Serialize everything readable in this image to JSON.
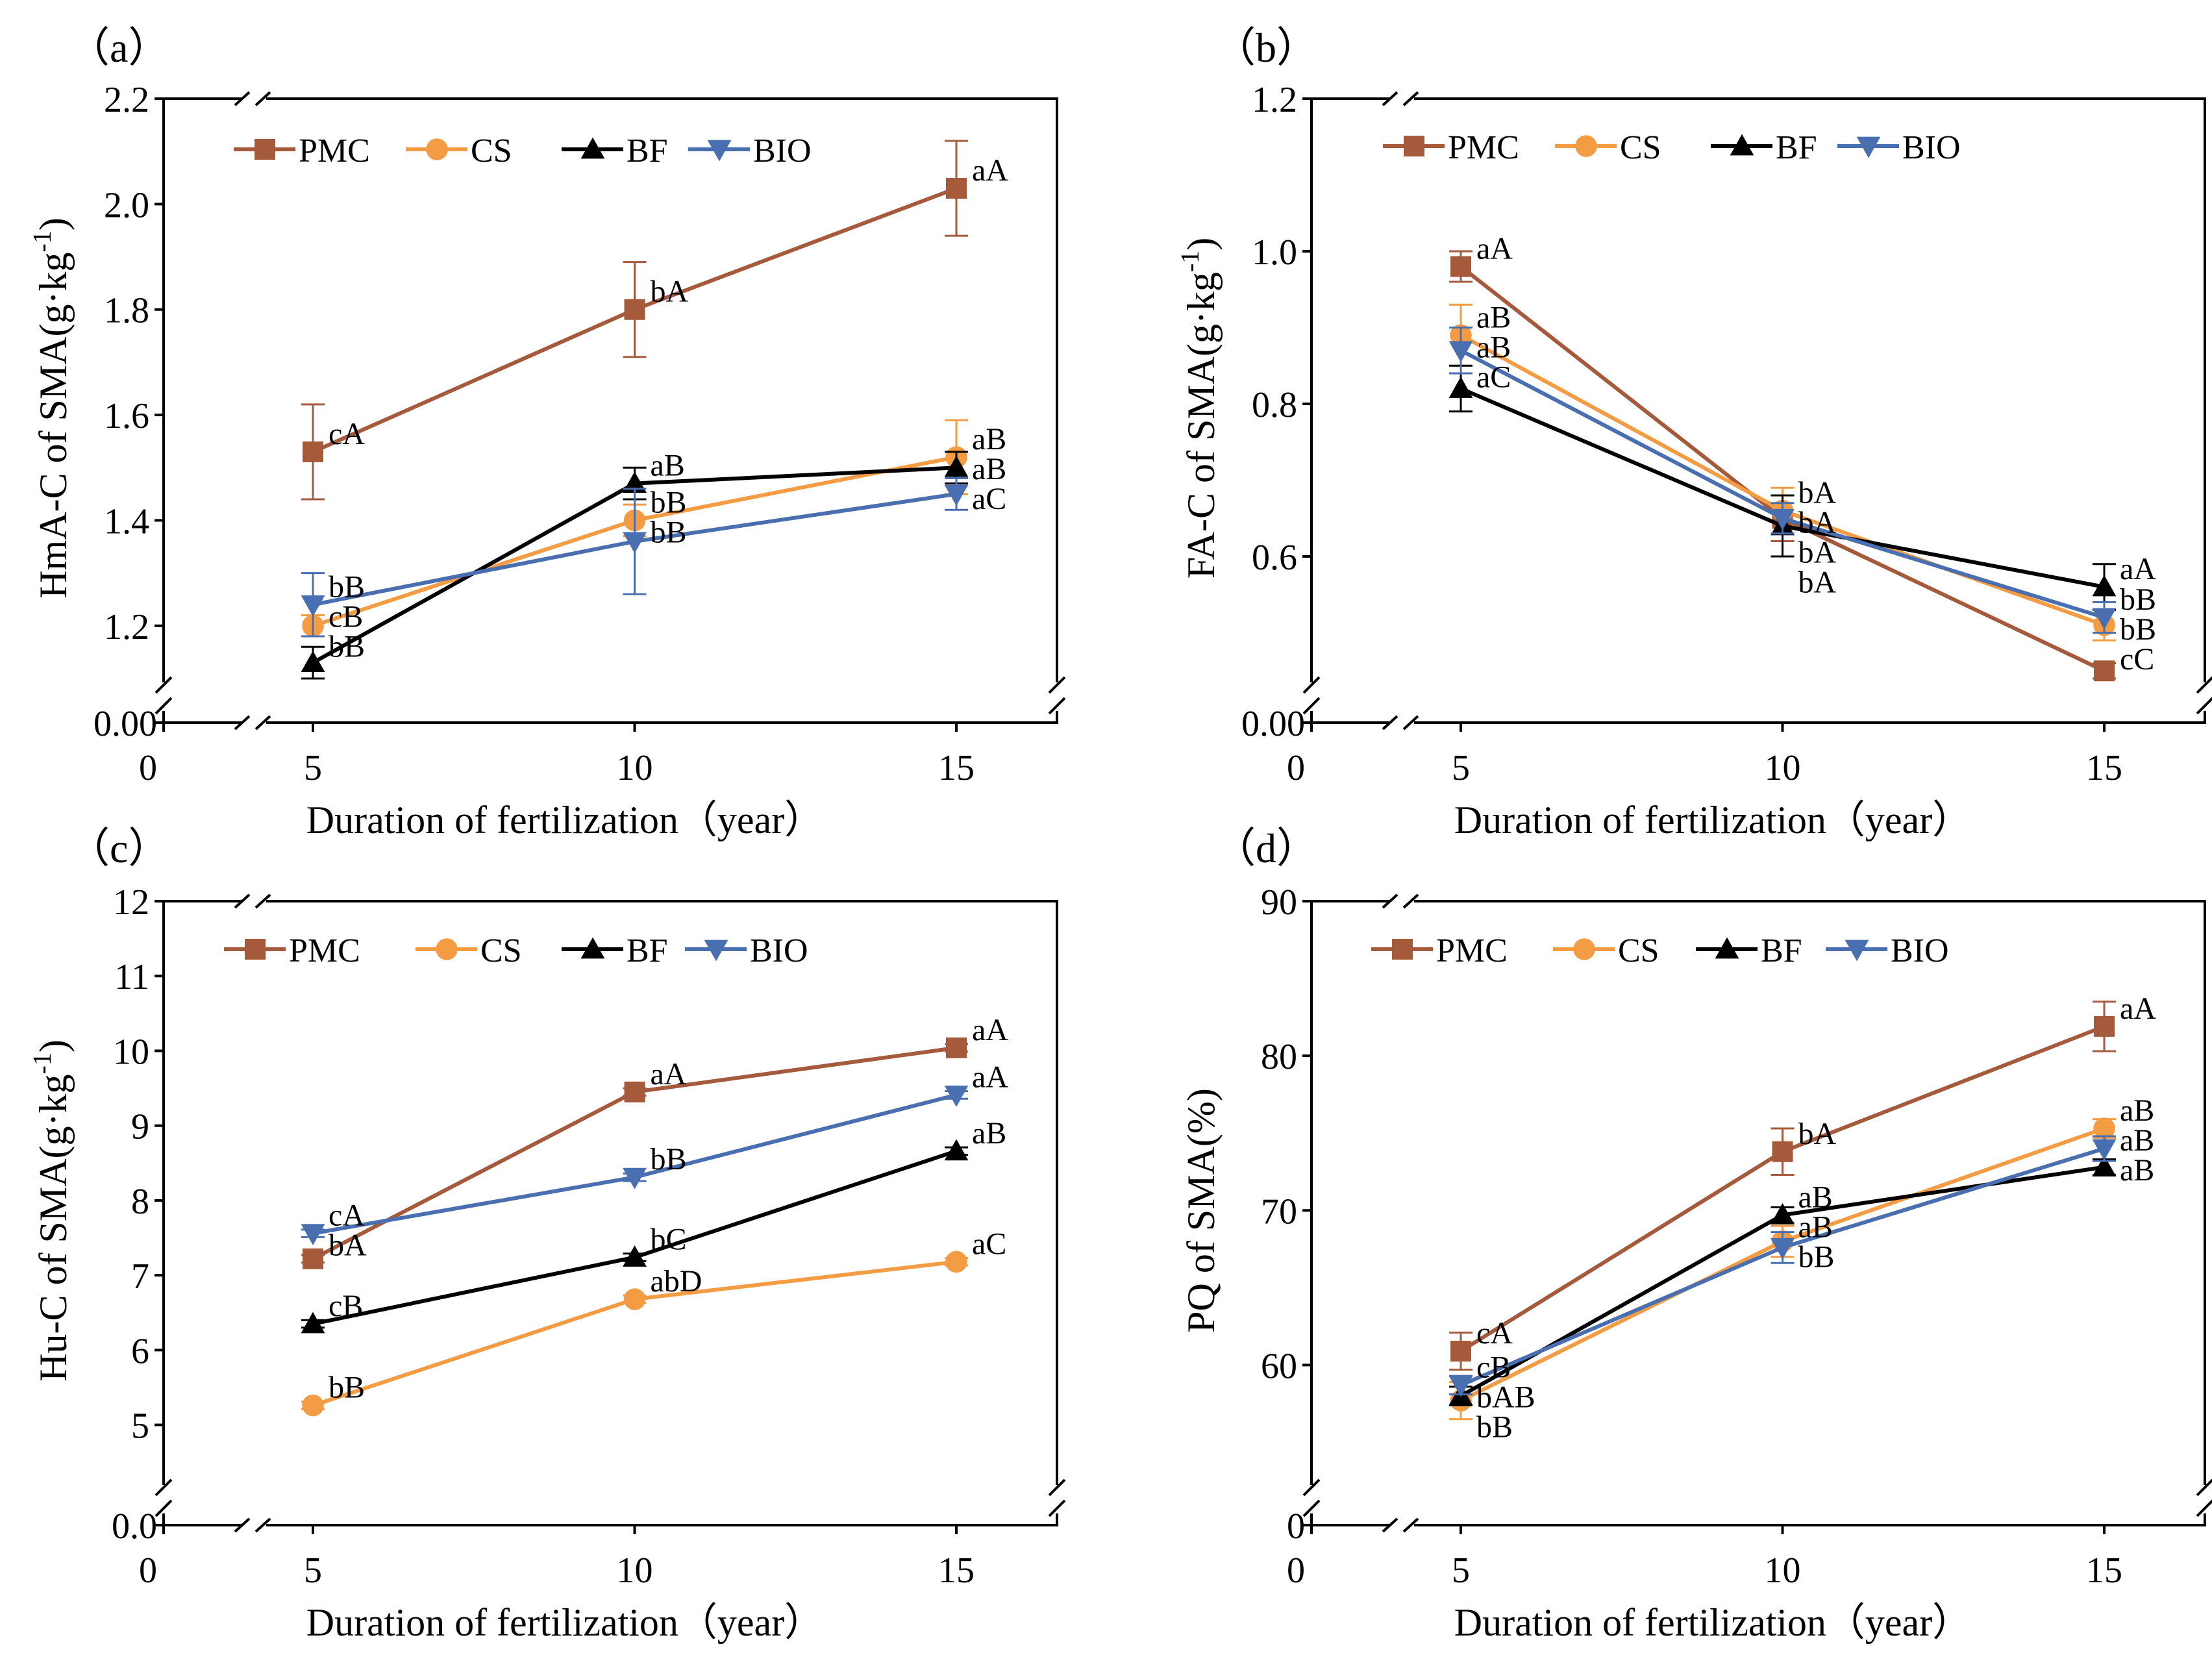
{
  "figure": {
    "series_colors": {
      "PMC": "#A55A3C",
      "CS": "#F39C43",
      "BF": "#000000",
      "BIO": "#4A6FB0"
    }
  },
  "chart_data": [
    {
      "type": "line",
      "panel_label": "（a）",
      "ylabel": "HmA-C of SMA(g·kg",
      "ylabel_sup": "-1",
      "ylabel_close": ")",
      "xlabel": "Duration of  fertilization（year）",
      "x_ticks": [
        "0",
        "5",
        "10",
        "15"
      ],
      "y_ticks": [
        {
          "v": 1.2,
          "t": "1.2"
        },
        {
          "v": 1.4,
          "t": "1.4"
        },
        {
          "v": 1.6,
          "t": "1.6"
        },
        {
          "v": 1.8,
          "t": "1.8"
        },
        {
          "v": 2.0,
          "t": "2.0"
        },
        {
          "v": 2.2,
          "t": "2.2"
        }
      ],
      "y_zero_label": "0.00",
      "ylim": [
        1.1,
        2.2
      ],
      "legend": [
        "PMC",
        "CS",
        "BF",
        "BIO"
      ],
      "x": [
        5,
        10,
        15
      ],
      "series": [
        {
          "name": "PMC",
          "values": [
            1.53,
            1.8,
            2.03
          ],
          "err": [
            0.09,
            0.09,
            0.09
          ],
          "labels": [
            "cA",
            "bA",
            "aA"
          ]
        },
        {
          "name": "CS",
          "values": [
            1.2,
            1.4,
            1.52
          ],
          "err": [
            0.02,
            0.03,
            0.07
          ],
          "labels": [
            "cB",
            "bB",
            "aB"
          ]
        },
        {
          "name": "BF",
          "values": [
            1.13,
            1.47,
            1.5
          ],
          "err": [
            0.03,
            0.03,
            0.03
          ],
          "labels": [
            "bB",
            "aB",
            "aB"
          ]
        },
        {
          "name": "BIO",
          "values": [
            1.24,
            1.36,
            1.45
          ],
          "err": [
            0.06,
            0.1,
            0.03
          ],
          "labels": [
            "bB",
            "bB",
            "aC"
          ]
        }
      ]
    },
    {
      "type": "line",
      "panel_label": "（b）",
      "ylabel": "FA-C of SMA(g·kg",
      "ylabel_sup": "-1",
      "ylabel_close": ")",
      "xlabel": "Duration of  fertilization（year）",
      "x_ticks": [
        "0",
        "5",
        "10",
        "15"
      ],
      "y_ticks": [
        {
          "v": 0.6,
          "t": "0.6"
        },
        {
          "v": 0.8,
          "t": "0.8"
        },
        {
          "v": 1.0,
          "t": "1.0"
        },
        {
          "v": 1.2,
          "t": "1.2"
        }
      ],
      "y_zero_label": "0.00",
      "ylim": [
        0.44,
        1.2
      ],
      "legend": [
        "PMC",
        "CS",
        "BF",
        "BIO"
      ],
      "x": [
        5,
        10,
        15
      ],
      "series": [
        {
          "name": "PMC",
          "values": [
            0.98,
            0.65,
            0.45
          ],
          "err": [
            0.02,
            0.03,
            0.01
          ],
          "labels": [
            "aA",
            "bA",
            "cC"
          ]
        },
        {
          "name": "CS",
          "values": [
            0.89,
            0.66,
            0.51
          ],
          "err": [
            0.04,
            0.03,
            0.02
          ],
          "labels": [
            "aB",
            "bA",
            "bB"
          ]
        },
        {
          "name": "BF",
          "values": [
            0.82,
            0.64,
            0.56
          ],
          "err": [
            0.03,
            0.04,
            0.03
          ],
          "labels": [
            "aC",
            "bA",
            "aA"
          ]
        },
        {
          "name": "BIO",
          "values": [
            0.87,
            0.65,
            0.52
          ],
          "err": [
            0.03,
            0.02,
            0.02
          ],
          "labels": [
            "aB",
            "bA",
            "bB"
          ]
        }
      ]
    },
    {
      "type": "line",
      "panel_label": "（c）",
      "ylabel": "Hu-C of SMA(g·kg",
      "ylabel_sup": "-1",
      "ylabel_close": ")",
      "xlabel": "Duration of  fertilization（year）",
      "x_ticks": [
        "0",
        "5",
        "10",
        "15"
      ],
      "y_ticks": [
        {
          "v": 5,
          "t": "5"
        },
        {
          "v": 6,
          "t": "6"
        },
        {
          "v": 7,
          "t": "7"
        },
        {
          "v": 8,
          "t": "8"
        },
        {
          "v": 9,
          "t": "9"
        },
        {
          "v": 10,
          "t": "10"
        },
        {
          "v": 11,
          "t": "11"
        },
        {
          "v": 12,
          "t": "12"
        }
      ],
      "y_zero_label": "0.0",
      "ylim": [
        4.25,
        12
      ],
      "legend": [
        "PMC",
        "CS",
        "BF",
        "BIO"
      ],
      "x": [
        5,
        10,
        15
      ],
      "series": [
        {
          "name": "PMC",
          "values": [
            7.22,
            9.45,
            10.04
          ],
          "err": [
            0.05,
            0.05,
            0.05
          ],
          "labels": [
            "bA",
            "aA",
            "aA"
          ]
        },
        {
          "name": "CS",
          "values": [
            5.26,
            6.68,
            7.18
          ],
          "err": [
            0.05,
            0.05,
            0.05
          ],
          "labels": [
            "bB",
            "abD",
            "aC"
          ]
        },
        {
          "name": "BF",
          "values": [
            6.35,
            7.24,
            8.66
          ],
          "err": [
            0.05,
            0.05,
            0.05
          ],
          "labels": [
            "cB",
            "bC",
            "aB"
          ]
        },
        {
          "name": "BIO",
          "values": [
            7.56,
            8.31,
            9.41
          ],
          "err": [
            0.05,
            0.05,
            0.05
          ],
          "labels": [
            "cA",
            "bB",
            "aA"
          ]
        }
      ]
    },
    {
      "type": "line",
      "panel_label": "（d）",
      "ylabel": "PQ of SMA(%)",
      "ylabel_sup": "",
      "ylabel_close": "",
      "xlabel": "Duration of  fertilization（year）",
      "x_ticks": [
        "0",
        "5",
        "10",
        "15"
      ],
      "y_ticks": [
        {
          "v": 60,
          "t": "60"
        },
        {
          "v": 70,
          "t": "70"
        },
        {
          "v": 80,
          "t": "80"
        },
        {
          "v": 90,
          "t": "90"
        }
      ],
      "y_zero_label": "0",
      "ylim": [
        52.5,
        90
      ],
      "legend": [
        "PMC",
        "CS",
        "BF",
        "BIO"
      ],
      "x": [
        5,
        10,
        15
      ],
      "series": [
        {
          "name": "PMC",
          "values": [
            60.9,
            73.8,
            81.9
          ],
          "err": [
            1.2,
            1.5,
            1.6
          ],
          "labels": [
            "cA",
            "bA",
            "aA"
          ]
        },
        {
          "name": "CS",
          "values": [
            57.7,
            68.0,
            75.3
          ],
          "err": [
            1.2,
            1.0,
            0.6
          ],
          "labels": [
            "bB",
            "aB",
            "aB"
          ]
        },
        {
          "name": "BF",
          "values": [
            58.0,
            69.7,
            72.8
          ],
          "err": [
            0.6,
            0.5,
            0.5
          ],
          "labels": [
            "bAB",
            "aB",
            "aB"
          ]
        },
        {
          "name": "BIO",
          "values": [
            58.7,
            67.6,
            74.0
          ],
          "err": [
            0.6,
            1.0,
            0.8
          ],
          "labels": [
            "cB",
            "bB",
            "aB"
          ]
        }
      ]
    }
  ]
}
